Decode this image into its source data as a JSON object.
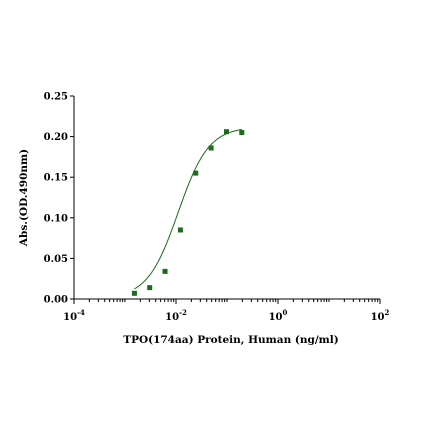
{
  "chart_data": {
    "type": "scatter",
    "xlabel": "TPO(174aa) Protein, Human  (ng/ml)",
    "ylabel": "Abs.(OD.490nm)",
    "x_scale": "log",
    "xlim": [
      0.0001,
      100
    ],
    "ylim": [
      0,
      0.25
    ],
    "x_ticks": [
      {
        "value": 0.0001,
        "base": "10",
        "exp": "-4"
      },
      {
        "value": 0.01,
        "base": "10",
        "exp": "-2"
      },
      {
        "value": 1,
        "base": "10",
        "exp": "0"
      },
      {
        "value": 100,
        "base": "10",
        "exp": "2"
      }
    ],
    "y_ticks": [
      "0.00",
      "0.05",
      "0.10",
      "0.15",
      "0.20",
      "0.25"
    ],
    "grid": false,
    "series": [
      {
        "color": "#1a6b1a",
        "marker": "square",
        "x": [
          0.00153,
          0.00305,
          0.0061,
          0.0122,
          0.0244,
          0.0488,
          0.0977,
          0.195
        ],
        "y": [
          0.007,
          0.014,
          0.034,
          0.085,
          0.155,
          0.186,
          0.206,
          0.205
        ],
        "fit": {
          "model": "4PL",
          "bottom": 0.001,
          "top": 0.212,
          "ec50": 0.011,
          "hill": 1.45
        }
      }
    ]
  }
}
